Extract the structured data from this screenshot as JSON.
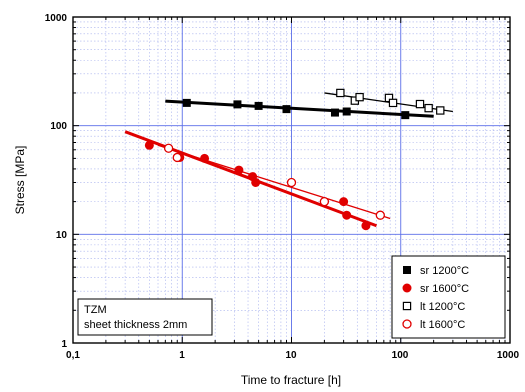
{
  "chart_data": {
    "type": "scatter",
    "xlabel": "Time to fracture [h]",
    "ylabel": "Stress [MPa]",
    "x_scale": "log",
    "y_scale": "log",
    "xlim": [
      0.1,
      1000
    ],
    "ylim": [
      1,
      1000
    ],
    "x_tick_labels": [
      "0,1",
      "1",
      "10",
      "100",
      "1000"
    ],
    "y_tick_labels": [
      "1",
      "10",
      "100",
      "1000"
    ],
    "grid": true,
    "legend_position": "bottom-right",
    "annotation": [
      "TZM",
      "sheet thickness 2mm"
    ],
    "series": [
      {
        "name": "sr 1200°C",
        "marker": "filled-square",
        "color": "#000000",
        "points": [
          [
            1.1,
            162
          ],
          [
            3.2,
            157
          ],
          [
            5,
            152
          ],
          [
            9,
            142
          ],
          [
            25,
            132
          ],
          [
            32,
            135
          ],
          [
            110,
            125
          ]
        ],
        "fit_line": [
          [
            0.7,
            168
          ],
          [
            200,
            122
          ]
        ]
      },
      {
        "name": "sr 1600°C",
        "marker": "filled-circle",
        "color": "#e00000",
        "points": [
          [
            0.5,
            66
          ],
          [
            0.95,
            51
          ],
          [
            1.6,
            50
          ],
          [
            3.3,
            39
          ],
          [
            4.4,
            34
          ],
          [
            4.7,
            30
          ],
          [
            20,
            20
          ],
          [
            30,
            20
          ],
          [
            32,
            15
          ],
          [
            48,
            12
          ]
        ],
        "fit_line": [
          [
            0.3,
            88
          ],
          [
            60,
            12
          ]
        ]
      },
      {
        "name": "lt 1200°C",
        "marker": "open-square",
        "color": "#000000",
        "points": [
          [
            28,
            200
          ],
          [
            38,
            170
          ],
          [
            42,
            183
          ],
          [
            78,
            180
          ],
          [
            85,
            162
          ],
          [
            150,
            158
          ],
          [
            180,
            145
          ],
          [
            230,
            138
          ]
        ],
        "fit_line": [
          [
            20,
            200
          ],
          [
            300,
            135
          ]
        ]
      },
      {
        "name": "lt 1600°C",
        "marker": "open-circle",
        "color": "#e00000",
        "points": [
          [
            0.75,
            62
          ],
          [
            0.9,
            51
          ],
          [
            10,
            30
          ],
          [
            20,
            20
          ],
          [
            65,
            15
          ]
        ],
        "fit_line": [
          [
            0.6,
            66
          ],
          [
            80,
            14
          ]
        ]
      }
    ]
  }
}
